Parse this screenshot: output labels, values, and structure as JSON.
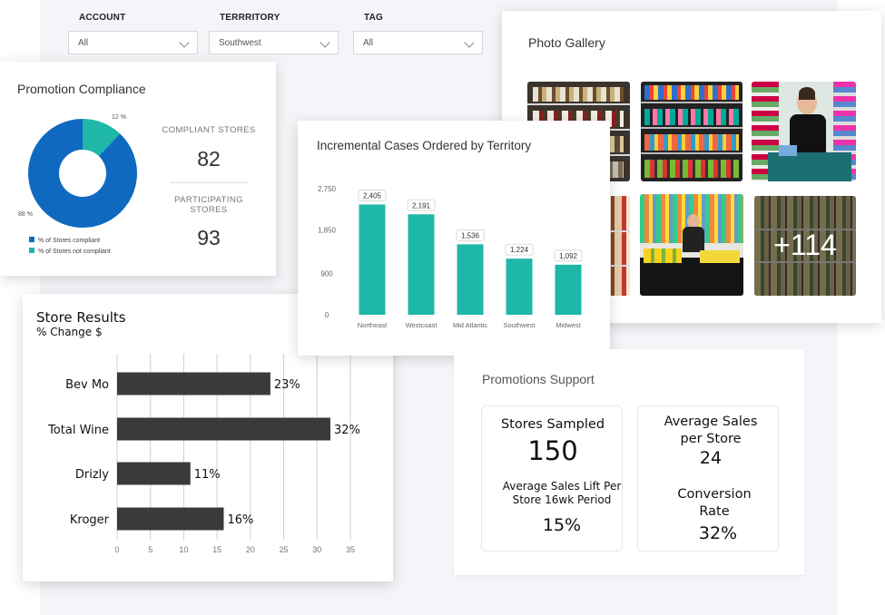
{
  "filters": {
    "account": {
      "label": "ACCOUNT",
      "value": "All"
    },
    "territory": {
      "label": "TERRRITORY",
      "value": "Southwest"
    },
    "tag": {
      "label": "TAG",
      "value": "All"
    }
  },
  "compliance": {
    "title": "Promotion Compliance",
    "compliant_pct_label": "88 %",
    "noncompliant_pct_label": "12 %",
    "legend": [
      "% of Stores compliant",
      "% of Stores not compliant"
    ],
    "colors": [
      "#0f6abf",
      "#1eb7a8"
    ],
    "compliant_label": "COMPLIANT STORES",
    "compliant_value": "82",
    "participating_label_1": "PARTICIPATING",
    "participating_label_2": "STORES",
    "participating_value": "93"
  },
  "territory_chart": {
    "title": "Incremental Cases Ordered by Territory",
    "bar_color": "#1eb7a8"
  },
  "gallery": {
    "title": "Photo Gallery",
    "more_label": "+114"
  },
  "store_results": {
    "title": "Store Results",
    "subtitle": "% Change $",
    "bar_color": "#3a3a3a"
  },
  "promotions": {
    "title": "Promotions Support",
    "stores_sampled_label": "Stores Sampled",
    "stores_sampled_value": "150",
    "lift_label_1": "Average Sales Lift Per",
    "lift_label_2": "Store 16wk Period",
    "lift_value": "15%",
    "avg_sales_label_1": "Average Sales",
    "avg_sales_label_2": "per Store",
    "avg_sales_value": "24",
    "conversion_label_1": "Conversion",
    "conversion_label_2": "Rate",
    "conversion_value": "32%"
  },
  "chart_data": [
    {
      "type": "pie",
      "title": "Promotion Compliance",
      "categories": [
        "% of Stores compliant",
        "% of Stores not compliant"
      ],
      "values": [
        88,
        12
      ],
      "value_labels": [
        "88 %",
        "12 %"
      ],
      "donut": true,
      "legend_position": "bottom-left"
    },
    {
      "type": "bar",
      "title": "Incremental Cases Ordered by Territory",
      "categories": [
        "Northeast",
        "Westcoast",
        "Mid Atlantic",
        "Southwest",
        "Midwest"
      ],
      "values": [
        2405,
        2191,
        1536,
        1224,
        1092
      ],
      "value_labels": [
        "2,405",
        "2,191",
        "1,536",
        "1,224",
        "1,092"
      ],
      "ylim": [
        0,
        2750
      ],
      "yticks": [
        0,
        900,
        1850,
        2750
      ],
      "ytick_labels": [
        "0",
        "900",
        "1,850",
        "2,750"
      ],
      "grid": false
    },
    {
      "type": "bar",
      "orientation": "horizontal",
      "title": "Store Results",
      "subtitle": "% Change $",
      "categories": [
        "Bev Mo",
        "Total Wine",
        "Drizly",
        "Kroger"
      ],
      "values": [
        23,
        32,
        11,
        16
      ],
      "value_labels": [
        "23%",
        "32%",
        "11%",
        "16%"
      ],
      "xlim": [
        0,
        35
      ],
      "xticks": [
        0,
        5,
        10,
        15,
        20,
        25,
        30,
        35
      ],
      "xtick_labels": [
        "0",
        "5",
        "10",
        "15",
        "20",
        "25",
        "30",
        "35"
      ],
      "grid": true
    }
  ]
}
